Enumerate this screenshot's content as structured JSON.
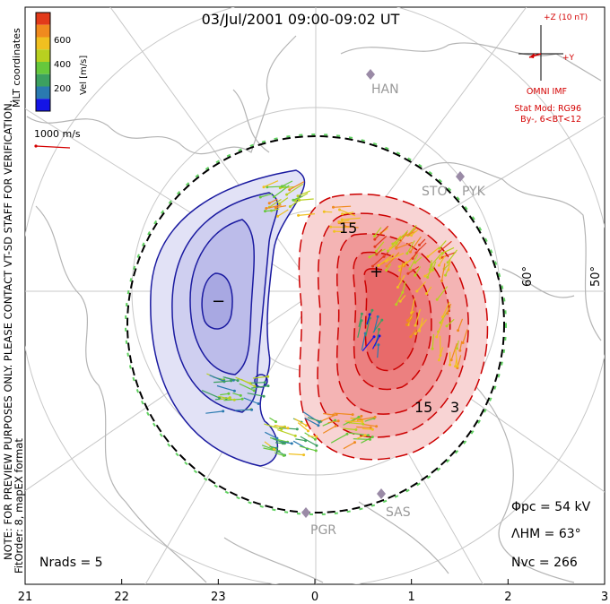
{
  "title": "03/Jul/2001 09:00-09:02 UT",
  "colorbar": {
    "label": "Vel [m/s]",
    "ticks": [
      "200",
      "400",
      "600"
    ],
    "colors": [
      "#1414e6",
      "#2a7ab0",
      "#3ca060",
      "#66c83c",
      "#b8d020",
      "#f0c020",
      "#f08a1e",
      "#e23a1a"
    ]
  },
  "coord_label": "MLT coordinates",
  "scale_vector": "1000 m/s",
  "side_note_1": "NOTE: FOR PREVIEW PURPOSES ONLY. PLEASE CONTACT VT-SD STAFF FOR VERIFICATION.",
  "side_note_2": "FitOrder: 8, mapEX format",
  "imf": {
    "z_label": "+Z (10 nT)",
    "y_label": "+Y",
    "source": "OMNI IMF",
    "model_line1": "Stat Mod: RG96",
    "model_line2": "By-, 6<BT<12"
  },
  "stations": [
    "HAN",
    "STO",
    "PYK",
    "SAS",
    "PGR"
  ],
  "latitude_labels": [
    "60°",
    "50°"
  ],
  "contour_labels": [
    "15",
    "15",
    "3"
  ],
  "potential_max_marker": "+",
  "potential_min_marker": "−",
  "stats": {
    "phi_pc": "Φpc = 54 kV",
    "lambda_hm": "ΛHM = 63°",
    "n_vc": "Nvc = 266",
    "n_rads": "Nrads = 5"
  },
  "mlt_ticks": [
    "21",
    "22",
    "23",
    "0",
    "1",
    "2",
    "3"
  ],
  "colors": {
    "positive_cell": "#f07070",
    "negative_cell": "#b6b6ee",
    "positive_contour": "#cc0000",
    "negative_contour": "#1a1aa0",
    "hm_boundary": "#60d060",
    "grid": "#c8c8c8",
    "coast": "#b4b4b4",
    "annotation_red": "#d40000"
  }
}
